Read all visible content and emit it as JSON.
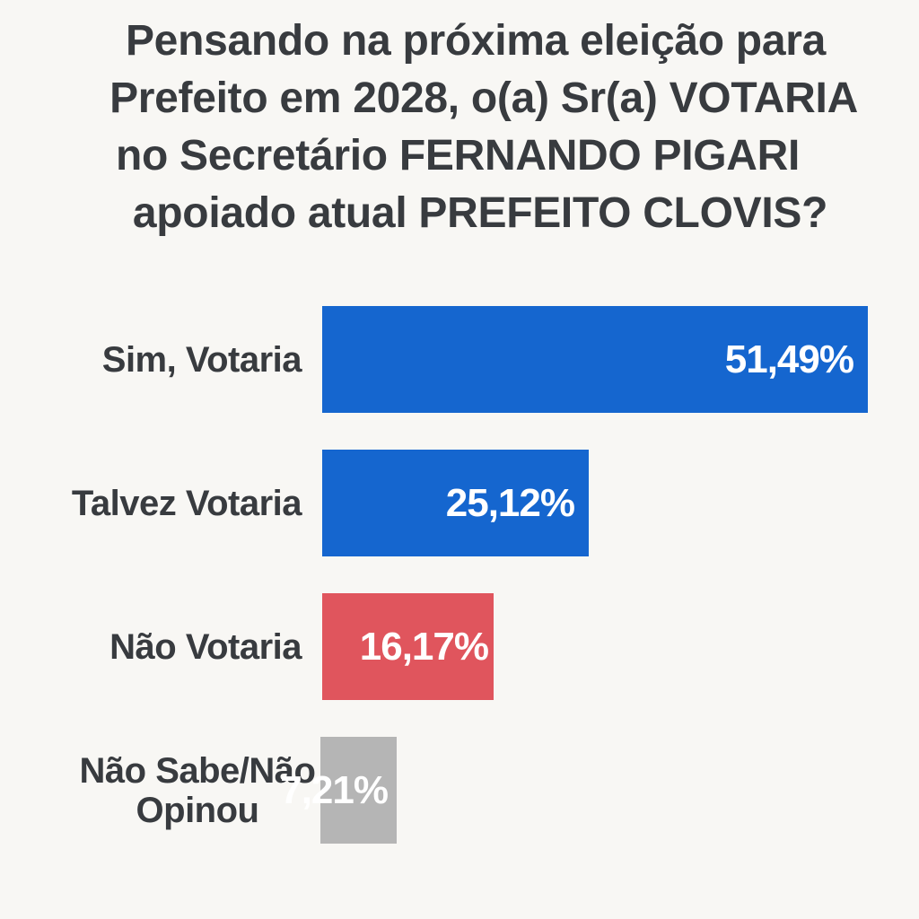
{
  "title_lines": [
    "Pensando na próxima eleição para",
    "Prefeito em 2028, o(a) Sr(a) VOTARIA",
    "no Secretário FERNANDO PIGARI",
    "apoiado atual PREFEITO CLOVIS?"
  ],
  "chart_data": {
    "type": "bar",
    "orientation": "horizontal",
    "title": "Pensando na próxima eleição para Prefeito em 2028, o(a) Sr(a) VOTARIA no Secretário FERNANDO PIGARI apoiado atual PREFEITO CLOVIS?",
    "categories": [
      "Sim, Votaria",
      "Talvez Votaria",
      "Não Votaria",
      "Não Sabe/Não Opinou"
    ],
    "values": [
      51.49,
      25.12,
      16.17,
      7.21
    ],
    "value_labels": [
      "51,49%",
      "25,12%",
      "16,17%",
      "7,21%"
    ],
    "colors": [
      "#1566cf",
      "#1566cf",
      "#e0555d",
      "#b5b5b5"
    ],
    "unit": "%",
    "xlim": [
      0,
      51.49
    ],
    "grid": false,
    "legend": "none"
  }
}
